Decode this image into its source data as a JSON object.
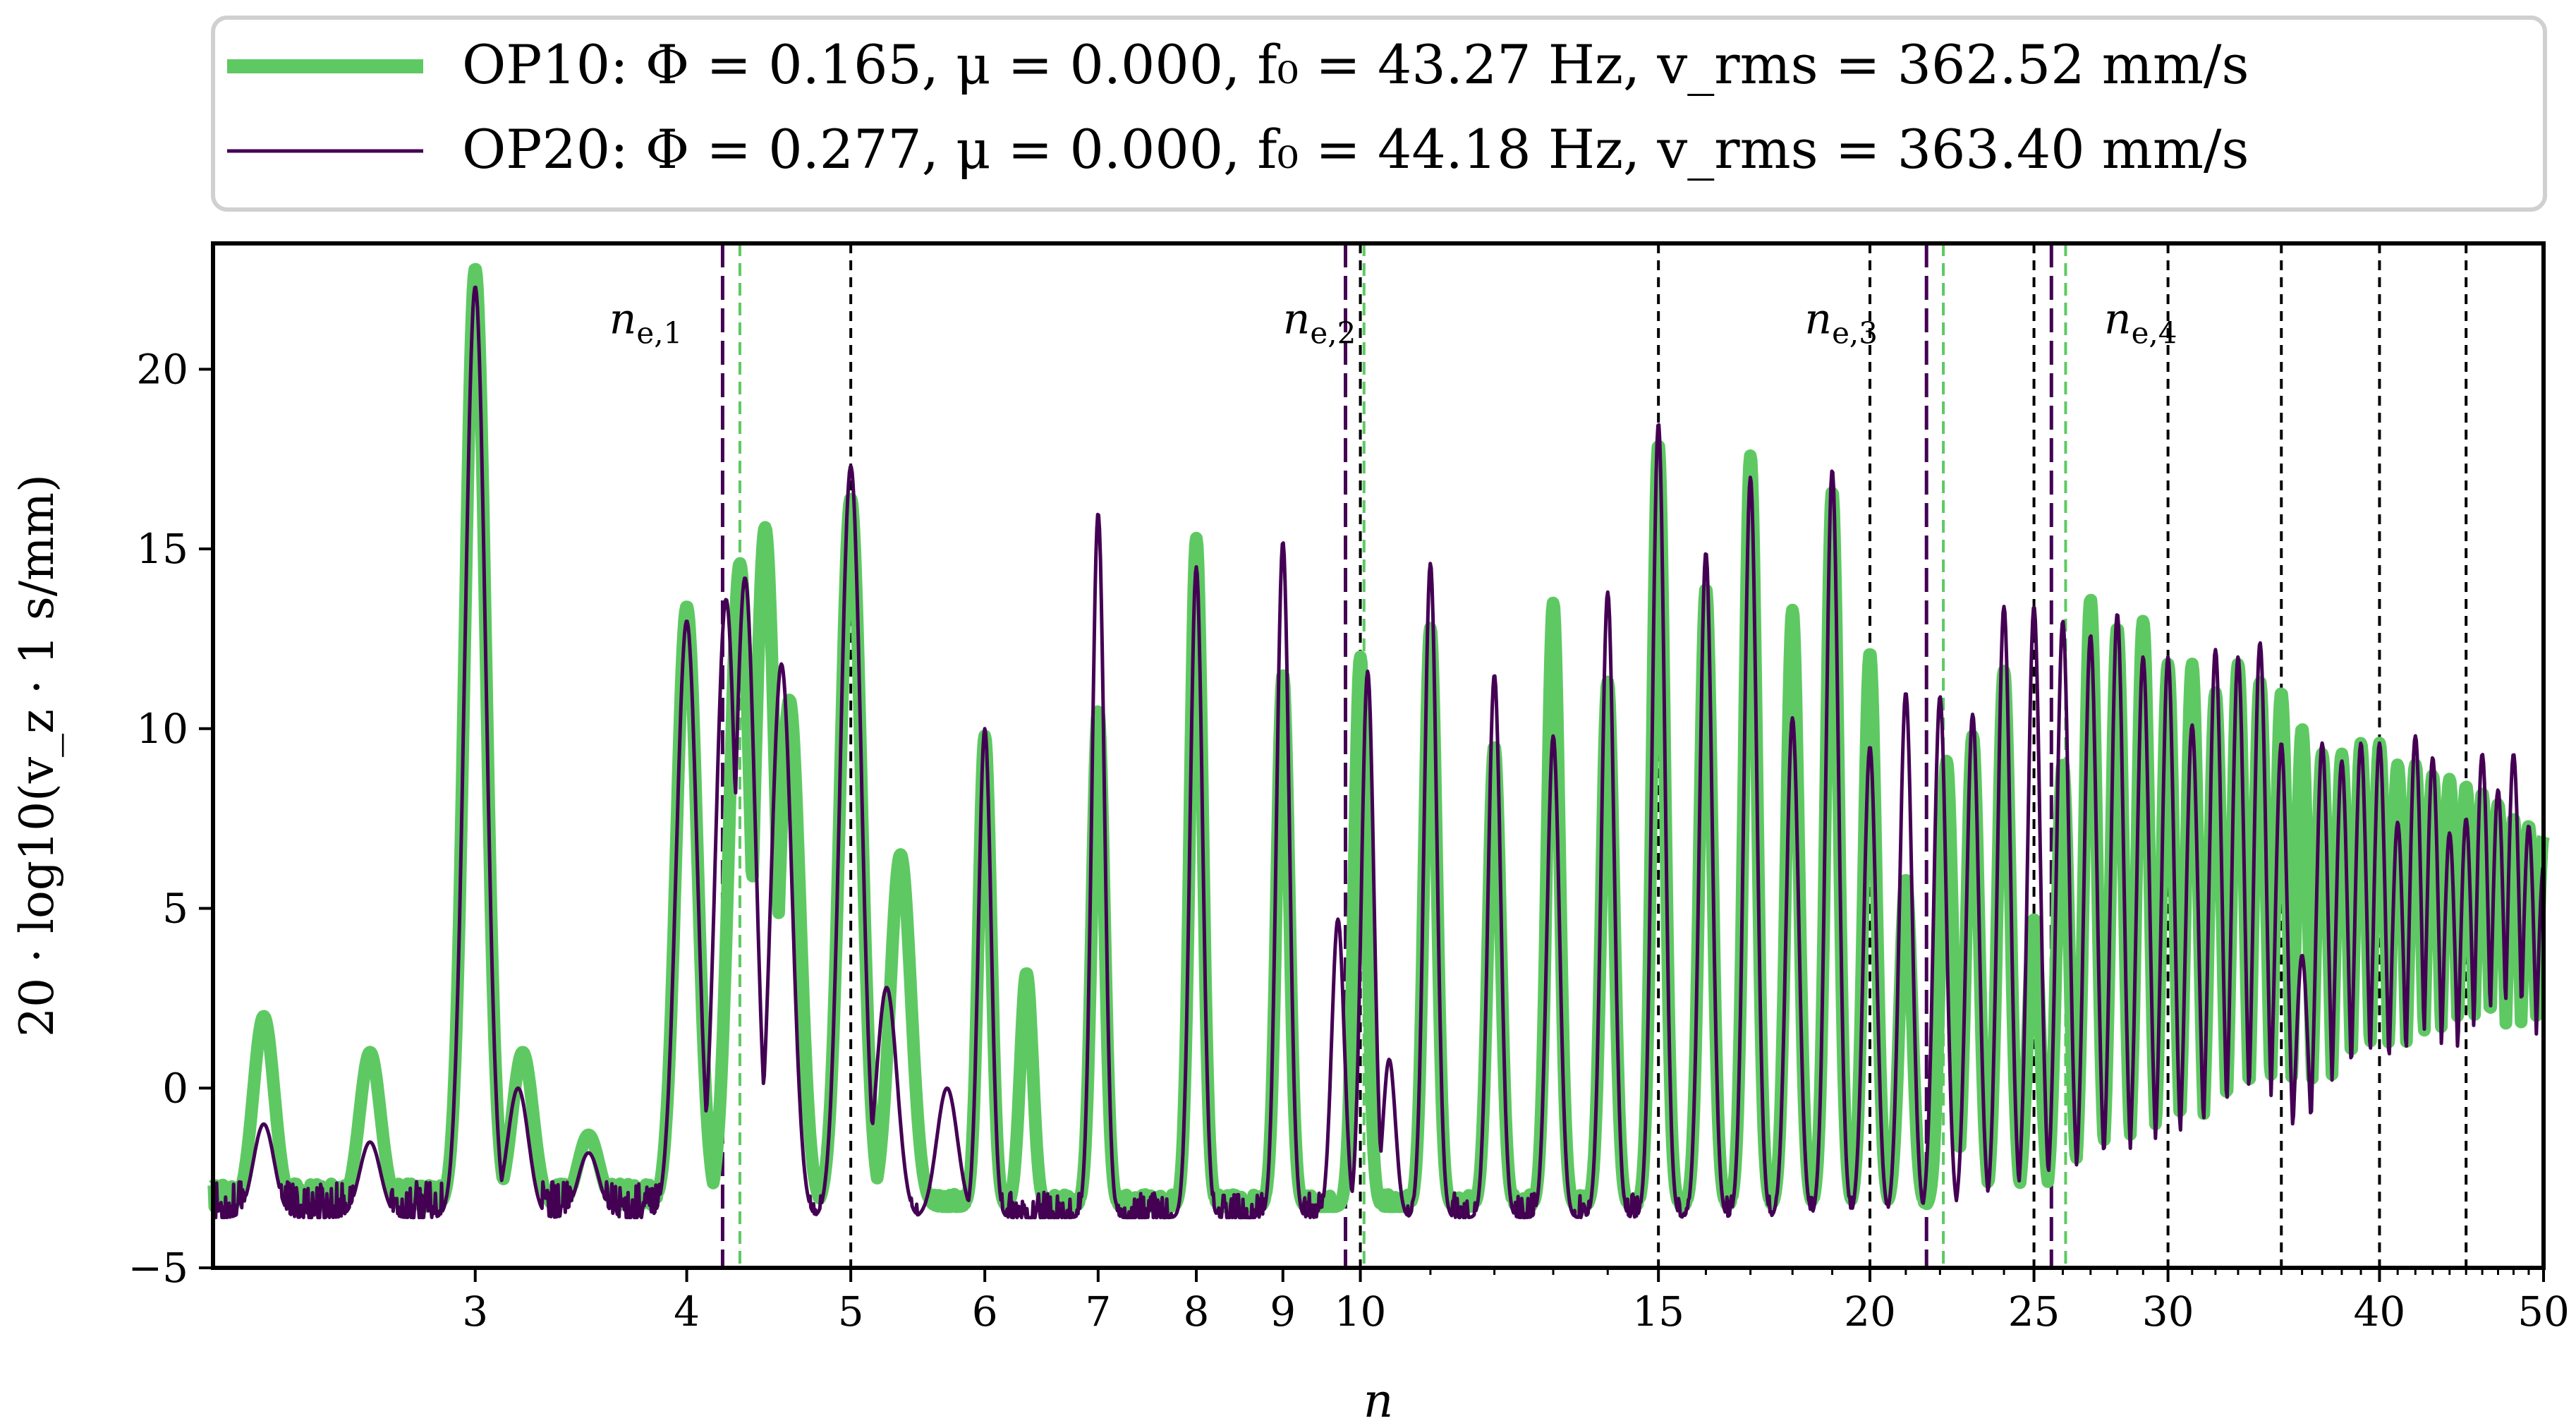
{
  "chart_data": {
    "type": "line",
    "title": "",
    "xlabel": "n",
    "ylabel": "20 · log10(v_z · 1 s/mm)",
    "xscale": "log",
    "xlim": [
      2.1,
      50
    ],
    "ylim": [
      -5,
      23.5
    ],
    "x_ticks": [
      3,
      4,
      5,
      6,
      7,
      8,
      9,
      10,
      15,
      20,
      25,
      30,
      40,
      50
    ],
    "x_tick_labels": [
      "3",
      "4",
      "5",
      "6",
      "7",
      "8",
      "9",
      "10",
      "15",
      "20",
      "25",
      "30",
      "40",
      "50"
    ],
    "y_ticks": [
      -5,
      0,
      5,
      10,
      15,
      20
    ],
    "y_tick_labels": [
      "−5",
      "0",
      "5",
      "10",
      "15",
      "20"
    ],
    "legend_position": "top, above axes",
    "legend": [
      {
        "label": "OP10:  Φ = 0.165,  μ = 0.000,  f₀ = 43.27 Hz,  v_rms = 362.52 mm/s",
        "color": "#5ec962",
        "style": "thick"
      },
      {
        "label": "OP20:  Φ = 0.277,  μ = 0.000,  f₀ = 44.18 Hz,  v_rms = 363.40 mm/s",
        "color": "#440154",
        "style": "thin"
      }
    ],
    "annotations": [
      {
        "text": "n",
        "subscript": "e,1",
        "x": 3.6,
        "y": 21
      },
      {
        "text": "n",
        "subscript": "e,2",
        "x": 9.0,
        "y": 21
      },
      {
        "text": "n",
        "subscript": "e,3",
        "x": 18.3,
        "y": 21
      },
      {
        "text": "n",
        "subscript": "e,4",
        "x": 27.5,
        "y": 21
      }
    ],
    "reference_lines_black": [
      5,
      10,
      15,
      20,
      25,
      30,
      35,
      40,
      45
    ],
    "eigen_lines": [
      {
        "series": "OP10",
        "color": "#5ec962",
        "x": [
          4.3,
          10.05,
          22.1,
          26.1
        ]
      },
      {
        "series": "OP20",
        "color": "#440154",
        "x": [
          4.2,
          9.8,
          21.6,
          25.6
        ]
      }
    ],
    "series": [
      {
        "name": "OP10",
        "color": "#5ec962",
        "baseline": -3.3,
        "peaks": [
          [
            2.25,
            2.0
          ],
          [
            2.6,
            1.0
          ],
          [
            3.0,
            22.8
          ],
          [
            3.2,
            1.0
          ],
          [
            3.5,
            -1.3
          ],
          [
            4.0,
            13.4
          ],
          [
            4.3,
            14.6
          ],
          [
            4.45,
            15.6
          ],
          [
            4.6,
            10.8
          ],
          [
            5.0,
            16.4
          ],
          [
            5.35,
            6.5
          ],
          [
            6.0,
            9.8
          ],
          [
            6.35,
            3.2
          ],
          [
            7.0,
            10.5
          ],
          [
            8.0,
            15.3
          ],
          [
            9.0,
            11.5
          ],
          [
            10.0,
            12.0
          ],
          [
            11.0,
            12.8
          ],
          [
            12.0,
            9.5
          ],
          [
            13.0,
            13.5
          ],
          [
            14.0,
            11.3
          ],
          [
            15.0,
            17.9
          ],
          [
            16.0,
            13.9
          ],
          [
            17.0,
            17.6
          ],
          [
            18.0,
            13.3
          ],
          [
            19.0,
            16.6
          ],
          [
            20.0,
            12.1
          ],
          [
            21.0,
            5.8
          ],
          [
            22.2,
            9.1
          ],
          [
            23.0,
            9.8
          ],
          [
            24.0,
            11.6
          ],
          [
            25.0,
            4.7
          ],
          [
            26.0,
            9.0
          ],
          [
            27.0,
            13.6
          ],
          [
            28.0,
            12.8
          ],
          [
            29.0,
            13.0
          ],
          [
            30.0,
            11.8
          ],
          [
            31.0,
            11.8
          ],
          [
            32.0,
            11.0
          ],
          [
            33.0,
            11.8
          ],
          [
            34.0,
            11.3
          ],
          [
            35.0,
            11.0
          ],
          [
            36.0,
            10.0
          ],
          [
            37.0,
            9.3
          ],
          [
            38.0,
            9.3
          ],
          [
            39.0,
            9.6
          ],
          [
            40.0,
            9.6
          ],
          [
            41.0,
            9.0
          ],
          [
            42.0,
            9.0
          ],
          [
            43.0,
            8.7
          ],
          [
            44.0,
            8.6
          ],
          [
            45.0,
            8.4
          ],
          [
            46.0,
            8.2
          ],
          [
            47.0,
            7.9
          ],
          [
            48.0,
            7.5
          ],
          [
            49.0,
            7.3
          ],
          [
            50.0,
            7.0
          ]
        ]
      },
      {
        "name": "OP20",
        "color": "#440154",
        "baseline": -3.6,
        "peaks": [
          [
            2.25,
            -1.0
          ],
          [
            2.6,
            -1.5
          ],
          [
            3.0,
            22.3
          ],
          [
            3.18,
            0.0
          ],
          [
            3.5,
            -1.8
          ],
          [
            4.0,
            13.0
          ],
          [
            4.22,
            13.6
          ],
          [
            4.33,
            14.2
          ],
          [
            4.55,
            11.8
          ],
          [
            5.0,
            17.3
          ],
          [
            5.25,
            2.8
          ],
          [
            5.7,
            0.0
          ],
          [
            6.0,
            10.0
          ],
          [
            7.0,
            16.0
          ],
          [
            8.0,
            14.5
          ],
          [
            9.0,
            15.2
          ],
          [
            9.7,
            4.7
          ],
          [
            10.1,
            11.6
          ],
          [
            10.4,
            0.8
          ],
          [
            11.0,
            14.6
          ],
          [
            12.0,
            11.5
          ],
          [
            13.0,
            9.8
          ],
          [
            14.0,
            13.8
          ],
          [
            15.0,
            18.5
          ],
          [
            16.0,
            14.9
          ],
          [
            17.0,
            17.0
          ],
          [
            18.0,
            10.3
          ],
          [
            19.0,
            17.2
          ],
          [
            20.0,
            9.5
          ],
          [
            21.0,
            11.0
          ],
          [
            22.0,
            10.9
          ],
          [
            23.0,
            10.4
          ],
          [
            24.0,
            13.4
          ],
          [
            25.0,
            13.4
          ],
          [
            26.0,
            13.0
          ],
          [
            27.0,
            12.6
          ],
          [
            28.0,
            13.2
          ],
          [
            29.0,
            12.0
          ],
          [
            30.0,
            12.0
          ],
          [
            31.0,
            10.1
          ],
          [
            32.0,
            12.2
          ],
          [
            33.0,
            12.0
          ],
          [
            34.0,
            12.4
          ],
          [
            35.0,
            9.6
          ],
          [
            36.0,
            3.7
          ],
          [
            37.0,
            9.6
          ],
          [
            38.0,
            9.1
          ],
          [
            39.0,
            9.6
          ],
          [
            40.0,
            9.6
          ],
          [
            41.0,
            7.4
          ],
          [
            42.0,
            9.8
          ],
          [
            43.0,
            9.2
          ],
          [
            44.0,
            7.1
          ],
          [
            45.0,
            7.5
          ],
          [
            46.0,
            9.3
          ],
          [
            47.0,
            8.3
          ],
          [
            48.0,
            9.3
          ],
          [
            49.0,
            7.3
          ],
          [
            50.0,
            6.2
          ]
        ]
      }
    ]
  }
}
